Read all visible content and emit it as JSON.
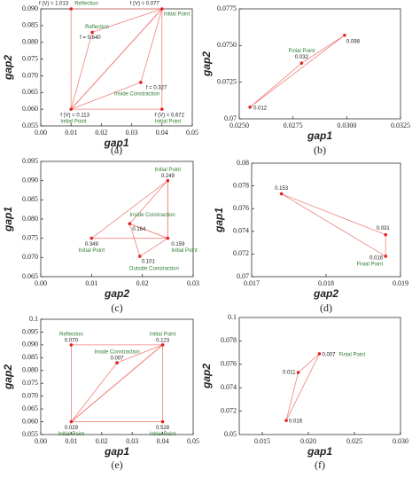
{
  "chart_data": [
    {
      "type": "scatter",
      "caption": "(a)",
      "xlabel": "gap1",
      "ylabel": "gap2",
      "color": "#e3211f",
      "line_color": "#f0807c",
      "xlim": [
        0,
        0.05
      ],
      "xticks": [
        {
          "value": 0,
          "label": "0.00"
        },
        0.01,
        0.02,
        0.03,
        0.04,
        0.05
      ],
      "ylim": [
        0.055,
        0.09
      ],
      "yticks": [
        0.055,
        {
          "value": 0.06,
          "label": "0.060"
        },
        0.065,
        {
          "value": 0.07,
          "label": "0.070"
        },
        0.075,
        {
          "value": 0.08,
          "label": "0.080"
        },
        0.085,
        {
          "value": 0.09,
          "label": "0.090"
        }
      ],
      "points": {
        "x": [
          0.01,
          0.04,
          0.01,
          0.04,
          0.017,
          0.033
        ],
        "y": [
          0.09,
          0.09,
          0.06,
          0.06,
          0.083,
          0.068
        ],
        "labels": [
          "f (V) = 1.013",
          "f (V) = 0.077",
          "f (V) = 0.113",
          "f (V) = 0.672",
          "f = 0.640",
          "f = 0.327"
        ],
        "notes": [
          "Reflection",
          "Initial Point",
          "Initial Point",
          "Initial Point",
          "Reflection",
          "Inside Constraction"
        ]
      },
      "simplices": [
        {
          "x": [
            0.01,
            0.04,
            0.01
          ],
          "y": [
            0.09,
            0.09,
            0.06
          ]
        },
        {
          "x": [
            0.04,
            0.01,
            0.04
          ],
          "y": [
            0.09,
            0.06,
            0.06
          ]
        },
        {
          "x": [
            0.01,
            0.017,
            0.04
          ],
          "y": [
            0.06,
            0.083,
            0.09
          ]
        },
        {
          "x": [
            0.01,
            0.033,
            0.04
          ],
          "y": [
            0.06,
            0.068,
            0.09
          ]
        }
      ]
    },
    {
      "type": "scatter",
      "caption": "(b)",
      "xlabel": "gap1",
      "ylabel": "gap2",
      "color": "#e3211f",
      "line_color": "#f0807c",
      "xlim": [
        0.025,
        0.0325
      ],
      "xticks": [
        {
          "value": 0.025,
          "label": "0.0250"
        },
        0.0275,
        {
          "value": 0.03,
          "label": "0.0300"
        },
        0.0325
      ],
      "ylim": [
        0.07,
        0.0775
      ],
      "yticks": [
        0.07,
        0.0725,
        {
          "value": 0.075,
          "label": "0.0750"
        },
        0.0775
      ],
      "points": {
        "x": [
          0.0255,
          0.0279,
          0.0299
        ],
        "y": [
          0.0708,
          0.0738,
          0.0757
        ],
        "labels": [
          "0.012",
          "0.032",
          "0.098"
        ],
        "notes": [
          null,
          "Finial Point",
          null
        ]
      },
      "simplices": [
        {
          "x": [
            0.0255,
            0.0279,
            0.0299
          ],
          "y": [
            0.0708,
            0.0738,
            0.0757
          ]
        }
      ]
    },
    {
      "type": "scatter",
      "caption": "(c)",
      "xlabel": "gap2",
      "ylabel": "gap1",
      "color": "#e3211f",
      "line_color": "#f0807c",
      "xlim": [
        0,
        0.03
      ],
      "xticks": [
        {
          "value": 0,
          "label": "0.00"
        },
        0.01,
        0.02,
        0.03
      ],
      "ylim": [
        0.065,
        0.095
      ],
      "yticks": [
        0.065,
        {
          "value": 0.07,
          "label": "0.070"
        },
        0.075,
        {
          "value": 0.08,
          "label": "0.080"
        },
        0.085,
        {
          "value": 0.09,
          "label": "0.090"
        },
        0.095
      ],
      "points": {
        "x": [
          0.025,
          0.01,
          0.025,
          0.0175,
          0.0195
        ],
        "y": [
          0.09,
          0.075,
          0.075,
          0.0788,
          0.0703
        ],
        "labels": [
          "0.249",
          "0.349",
          "0.159",
          "0.164",
          "0.101"
        ],
        "notes": [
          "Initial Point",
          "Initial Point",
          "Initial Point",
          "Inside Constraction",
          "Outside Constraction"
        ]
      },
      "simplices": [
        {
          "x": [
            0.025,
            0.01,
            0.025
          ],
          "y": [
            0.09,
            0.075,
            0.075
          ]
        },
        {
          "x": [
            0.025,
            0.0175,
            0.025
          ],
          "y": [
            0.09,
            0.0788,
            0.075
          ]
        },
        {
          "x": [
            0.025,
            0.0175,
            0.0195
          ],
          "y": [
            0.075,
            0.0788,
            0.0703
          ]
        }
      ]
    },
    {
      "type": "scatter",
      "caption": "(d)",
      "xlabel": "gap2",
      "ylabel": "gap1",
      "color": "#e3211f",
      "line_color": "#f0807c",
      "xlim": [
        0.017,
        0.019
      ],
      "xticks": [
        0.017,
        0.018,
        0.019
      ],
      "ylim": [
        0.07,
        0.08
      ],
      "yticks": [
        0.07,
        0.072,
        0.074,
        0.076,
        0.078,
        0.08
      ],
      "points": {
        "x": [
          0.0174,
          0.0188,
          0.0188
        ],
        "y": [
          0.0773,
          0.0737,
          0.0718
        ],
        "labels": [
          "0.153",
          "0.031",
          "0.016"
        ],
        "notes": [
          null,
          null,
          "Finial Point"
        ]
      },
      "simplices": [
        {
          "x": [
            0.0174,
            0.0188,
            0.0188
          ],
          "y": [
            0.0773,
            0.0737,
            0.0718
          ]
        }
      ]
    },
    {
      "type": "scatter",
      "caption": "(e)",
      "xlabel": "gap1",
      "ylabel": "gap2",
      "color": "#e3211f",
      "line_color": "#f0807c",
      "xlim": [
        0,
        0.05
      ],
      "xticks": [
        {
          "value": 0,
          "label": "0.00"
        },
        0.01,
        0.02,
        0.03,
        0.04,
        0.05
      ],
      "ylim": [
        0.055,
        0.1
      ],
      "yticks": [
        0.055,
        {
          "value": 0.06,
          "label": "0.060"
        },
        0.065,
        {
          "value": 0.07,
          "label": "0.070"
        },
        0.075,
        {
          "value": 0.08,
          "label": "0.080"
        },
        0.085,
        {
          "value": 0.09,
          "label": "0.090"
        },
        0.095,
        0.1
      ],
      "points": {
        "x": [
          0.01,
          0.04,
          0.025,
          0.01,
          0.04
        ],
        "y": [
          0.09,
          0.09,
          0.083,
          0.06,
          0.06
        ],
        "labels": [
          "0.070",
          "0.123",
          "0.007",
          "0.029",
          "0.528"
        ],
        "notes": [
          "Reflection",
          "Initial Point",
          "Inside Constraction",
          "Initial Point",
          "Initial Point"
        ]
      },
      "simplices": [
        {
          "x": [
            0.01,
            0.04,
            0.04
          ],
          "y": [
            0.06,
            0.09,
            0.06
          ]
        },
        {
          "x": [
            0.01,
            0.01,
            0.04
          ],
          "y": [
            0.06,
            0.09,
            0.09
          ]
        },
        {
          "x": [
            0.01,
            0.025,
            0.04
          ],
          "y": [
            0.06,
            0.083,
            0.09
          ]
        }
      ]
    },
    {
      "type": "scatter",
      "caption": "(f)",
      "xlabel": "gap1",
      "ylabel": "gap2",
      "color": "#e3211f",
      "line_color": "#f0807c",
      "xlim": [
        0.0125,
        0.03
      ],
      "xticks": [
        0.015,
        {
          "value": 0.02,
          "label": "0.020"
        },
        0.025,
        {
          "value": 0.03,
          "label": "0.030"
        }
      ],
      "ylim": [
        0.07,
        0.08
      ],
      "ylim_labels": [
        "0.05",
        "0.1"
      ],
      "yticks": [
        0.072,
        0.074,
        0.076,
        0.078
      ],
      "points": {
        "x": [
          0.0212,
          0.0189,
          0.0176
        ],
        "y": [
          0.0769,
          0.0753,
          0.0712
        ],
        "labels": [
          "0.007",
          "0.011",
          "0.016"
        ],
        "notes": [
          "Finial Point",
          null,
          null
        ]
      },
      "simplices": [
        {
          "x": [
            0.0212,
            0.0189,
            0.0176
          ],
          "y": [
            0.0769,
            0.0753,
            0.0712
          ]
        }
      ]
    }
  ]
}
